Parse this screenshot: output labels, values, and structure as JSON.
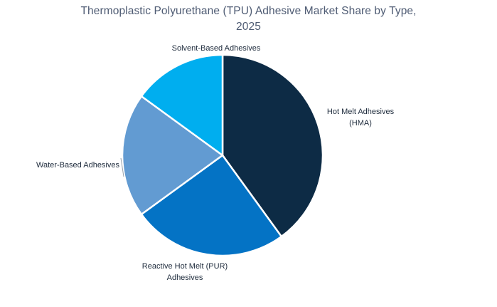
{
  "title": {
    "line1": "Thermoplastic Polyurethane (TPU) Adhesive Market Share by Type,",
    "line2": "2025"
  },
  "chart_data": {
    "type": "pie",
    "title": "Thermoplastic Polyurethane (TPU) Adhesive Market Share by Type, 2025",
    "unit": "percent market share (estimated from slice angles)",
    "start_angle_deg": 0,
    "direction": "clockwise",
    "legend_position": "none",
    "labels_position": "outside",
    "slices": [
      {
        "label": "Hot Melt Adhesives (HMA)",
        "value": 40,
        "color": "#0d2b45"
      },
      {
        "label": "Reactive Hot Melt (PUR) Adhesives",
        "value": 25,
        "color": "#0473c5"
      },
      {
        "label": "Water-Based Adhesives",
        "value": 20,
        "color": "#629bd2"
      },
      {
        "label": "Solvent-Based Adhesives",
        "value": 15,
        "color": "#00aeef"
      }
    ]
  },
  "labels": {
    "solvent": "Solvent-Based Adhesives",
    "hma_line1": "Hot Melt Adhesives",
    "hma_line2": "(HMA)",
    "water": "Water-Based Adhesives",
    "reactive_line1": "Reactive Hot Melt (PUR)",
    "reactive_line2": "Adhesives"
  },
  "colors": {
    "background": "#ffffff",
    "title_text": "#4e5b73",
    "label_text": "#1e2b3c",
    "slice_border": "#ffffff",
    "leader_line": "#9aa3ad"
  }
}
